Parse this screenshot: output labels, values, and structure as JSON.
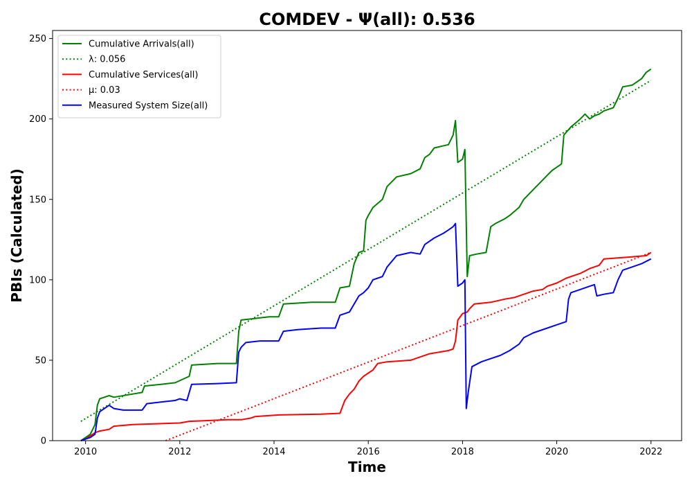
{
  "chart_data": {
    "type": "line",
    "title": "COMDEV -  Ψ(all): 0.536",
    "xlabel": "Time",
    "ylabel": "PBIs (Calculated)",
    "xlim": [
      2009.3,
      2022.65
    ],
    "ylim": [
      0,
      255
    ],
    "xticks": [
      2010,
      2012,
      2014,
      2016,
      2018,
      2020,
      2022
    ],
    "yticks": [
      0,
      50,
      100,
      150,
      200,
      250
    ],
    "grid": false,
    "legend_position": "top-left",
    "series": [
      {
        "name": "Cumulative Arrivals(all)",
        "color": "#008000",
        "style": "solid",
        "points": [
          [
            2009.9,
            0
          ],
          [
            2010.0,
            2
          ],
          [
            2010.1,
            4
          ],
          [
            2010.2,
            10
          ],
          [
            2010.25,
            22
          ],
          [
            2010.3,
            26
          ],
          [
            2010.4,
            27
          ],
          [
            2010.5,
            28
          ],
          [
            2010.6,
            27
          ],
          [
            2011.0,
            29
          ],
          [
            2011.2,
            30
          ],
          [
            2011.25,
            34
          ],
          [
            2011.6,
            35
          ],
          [
            2011.9,
            36
          ],
          [
            2012.2,
            40
          ],
          [
            2012.25,
            47
          ],
          [
            2012.8,
            48
          ],
          [
            2013.2,
            48
          ],
          [
            2013.25,
            68
          ],
          [
            2013.3,
            75
          ],
          [
            2013.6,
            76
          ],
          [
            2013.9,
            77
          ],
          [
            2014.1,
            77
          ],
          [
            2014.2,
            85
          ],
          [
            2014.8,
            86
          ],
          [
            2015.3,
            86
          ],
          [
            2015.4,
            95
          ],
          [
            2015.6,
            96
          ],
          [
            2015.7,
            110
          ],
          [
            2015.8,
            117
          ],
          [
            2015.9,
            118
          ],
          [
            2015.95,
            137
          ],
          [
            2016.0,
            140
          ],
          [
            2016.1,
            145
          ],
          [
            2016.3,
            150
          ],
          [
            2016.4,
            158
          ],
          [
            2016.6,
            164
          ],
          [
            2016.9,
            166
          ],
          [
            2017.1,
            169
          ],
          [
            2017.2,
            176
          ],
          [
            2017.3,
            178
          ],
          [
            2017.4,
            182
          ],
          [
            2017.7,
            184
          ],
          [
            2017.8,
            190
          ],
          [
            2017.85,
            199
          ],
          [
            2017.9,
            173
          ],
          [
            2018.0,
            175
          ],
          [
            2018.05,
            181
          ],
          [
            2018.1,
            102
          ],
          [
            2018.15,
            115
          ],
          [
            2018.3,
            116
          ],
          [
            2018.5,
            117
          ],
          [
            2018.6,
            133
          ],
          [
            2018.7,
            135
          ],
          [
            2018.9,
            138
          ],
          [
            2019.0,
            140
          ],
          [
            2019.2,
            145
          ],
          [
            2019.3,
            150
          ],
          [
            2019.5,
            156
          ],
          [
            2019.7,
            162
          ],
          [
            2019.8,
            165
          ],
          [
            2019.9,
            168
          ],
          [
            2020.0,
            170
          ],
          [
            2020.1,
            172
          ],
          [
            2020.15,
            190
          ],
          [
            2020.3,
            195
          ],
          [
            2020.5,
            200
          ],
          [
            2020.6,
            203
          ],
          [
            2020.7,
            200
          ],
          [
            2020.8,
            202
          ],
          [
            2020.9,
            203
          ],
          [
            2021.0,
            205
          ],
          [
            2021.2,
            207
          ],
          [
            2021.3,
            213
          ],
          [
            2021.4,
            220
          ],
          [
            2021.6,
            221
          ],
          [
            2021.8,
            225
          ],
          [
            2021.9,
            229
          ],
          [
            2022.0,
            231
          ]
        ]
      },
      {
        "name": "λ: 0.056",
        "color": "#008000",
        "style": "dotted",
        "points": [
          [
            2009.9,
            12
          ],
          [
            2022.0,
            224
          ]
        ]
      },
      {
        "name": "Cumulative Services(all)",
        "color": "#ff0000",
        "style": "solid",
        "points": [
          [
            2009.9,
            0
          ],
          [
            2010.0,
            1
          ],
          [
            2010.2,
            5
          ],
          [
            2010.3,
            6
          ],
          [
            2010.5,
            7
          ],
          [
            2010.6,
            9
          ],
          [
            2011.0,
            10
          ],
          [
            2011.5,
            10.5
          ],
          [
            2012.0,
            11
          ],
          [
            2012.2,
            12
          ],
          [
            2012.6,
            12.5
          ],
          [
            2013.0,
            13
          ],
          [
            2013.3,
            13
          ],
          [
            2013.5,
            14
          ],
          [
            2013.6,
            15
          ],
          [
            2014.1,
            16
          ],
          [
            2015.0,
            16.5
          ],
          [
            2015.4,
            17
          ],
          [
            2015.5,
            25
          ],
          [
            2015.6,
            29
          ],
          [
            2015.7,
            32
          ],
          [
            2015.8,
            37
          ],
          [
            2015.9,
            40
          ],
          [
            2016.0,
            42
          ],
          [
            2016.1,
            44
          ],
          [
            2016.2,
            48
          ],
          [
            2016.4,
            49
          ],
          [
            2016.9,
            50
          ],
          [
            2017.0,
            51
          ],
          [
            2017.3,
            54
          ],
          [
            2017.5,
            55
          ],
          [
            2017.7,
            56
          ],
          [
            2017.8,
            57
          ],
          [
            2017.85,
            62
          ],
          [
            2017.9,
            75
          ],
          [
            2018.0,
            79
          ],
          [
            2018.1,
            80
          ],
          [
            2018.15,
            82
          ],
          [
            2018.25,
            85
          ],
          [
            2018.6,
            86
          ],
          [
            2018.9,
            88
          ],
          [
            2019.1,
            89
          ],
          [
            2019.3,
            91
          ],
          [
            2019.5,
            93
          ],
          [
            2019.7,
            94
          ],
          [
            2019.8,
            96
          ],
          [
            2020.0,
            98
          ],
          [
            2020.2,
            101
          ],
          [
            2020.5,
            104
          ],
          [
            2020.7,
            107
          ],
          [
            2020.9,
            109
          ],
          [
            2021.0,
            113
          ],
          [
            2021.5,
            114
          ],
          [
            2021.9,
            115
          ],
          [
            2022.0,
            117
          ]
        ]
      },
      {
        "name": "μ: 0.03",
        "color": "#ff0000",
        "style": "dotted",
        "points": [
          [
            2011.7,
            0
          ],
          [
            2022.0,
            117
          ]
        ]
      },
      {
        "name": "Measured System Size(all)",
        "color": "#0000ff",
        "style": "solid",
        "points": [
          [
            2009.9,
            0
          ],
          [
            2010.0,
            1
          ],
          [
            2010.1,
            2
          ],
          [
            2010.2,
            4
          ],
          [
            2010.25,
            14
          ],
          [
            2010.3,
            18
          ],
          [
            2010.4,
            20
          ],
          [
            2010.5,
            22
          ],
          [
            2010.6,
            20
          ],
          [
            2010.8,
            19
          ],
          [
            2011.0,
            19
          ],
          [
            2011.2,
            19
          ],
          [
            2011.3,
            23
          ],
          [
            2011.6,
            24
          ],
          [
            2011.9,
            25
          ],
          [
            2012.0,
            26
          ],
          [
            2012.15,
            25
          ],
          [
            2012.25,
            35
          ],
          [
            2012.8,
            35.5
          ],
          [
            2013.2,
            36
          ],
          [
            2013.25,
            55
          ],
          [
            2013.3,
            58
          ],
          [
            2013.4,
            61
          ],
          [
            2013.7,
            62
          ],
          [
            2014.1,
            62
          ],
          [
            2014.2,
            68
          ],
          [
            2014.5,
            69
          ],
          [
            2015.0,
            70
          ],
          [
            2015.3,
            70
          ],
          [
            2015.4,
            78
          ],
          [
            2015.6,
            80
          ],
          [
            2015.7,
            85
          ],
          [
            2015.8,
            90
          ],
          [
            2015.9,
            92
          ],
          [
            2016.0,
            95
          ],
          [
            2016.1,
            100
          ],
          [
            2016.2,
            101
          ],
          [
            2016.3,
            102
          ],
          [
            2016.4,
            108
          ],
          [
            2016.6,
            115
          ],
          [
            2016.9,
            117
          ],
          [
            2017.1,
            116
          ],
          [
            2017.2,
            122
          ],
          [
            2017.4,
            126
          ],
          [
            2017.6,
            129
          ],
          [
            2017.7,
            131
          ],
          [
            2017.8,
            133
          ],
          [
            2017.85,
            135
          ],
          [
            2017.9,
            96
          ],
          [
            2018.0,
            98
          ],
          [
            2018.05,
            100
          ],
          [
            2018.08,
            20
          ],
          [
            2018.12,
            30
          ],
          [
            2018.2,
            46
          ],
          [
            2018.4,
            49
          ],
          [
            2018.6,
            51
          ],
          [
            2018.8,
            53
          ],
          [
            2019.0,
            56
          ],
          [
            2019.2,
            60
          ],
          [
            2019.3,
            64
          ],
          [
            2019.5,
            67
          ],
          [
            2019.8,
            70
          ],
          [
            2020.0,
            72
          ],
          [
            2020.2,
            74
          ],
          [
            2020.25,
            88
          ],
          [
            2020.3,
            92
          ],
          [
            2020.5,
            94
          ],
          [
            2020.7,
            96
          ],
          [
            2020.8,
            97
          ],
          [
            2020.85,
            90
          ],
          [
            2021.0,
            91
          ],
          [
            2021.2,
            92
          ],
          [
            2021.3,
            100
          ],
          [
            2021.4,
            106
          ],
          [
            2021.6,
            108
          ],
          [
            2021.8,
            110
          ],
          [
            2022.0,
            113
          ]
        ]
      }
    ]
  }
}
